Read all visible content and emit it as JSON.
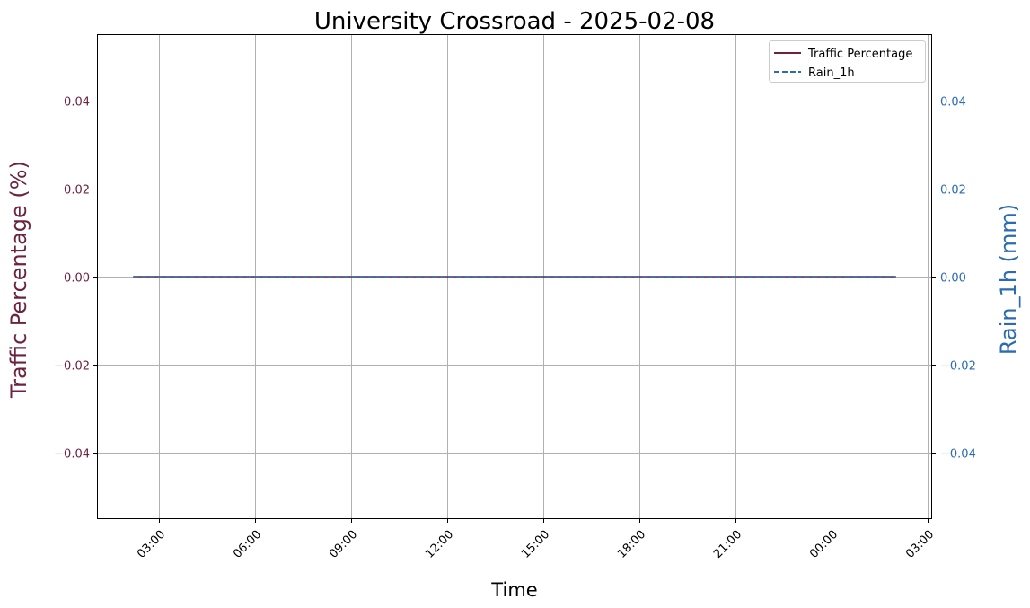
{
  "chart_data": {
    "type": "line",
    "title": "University Crossroad - 2025-02-08",
    "xlabel": "Time",
    "ylabel_left": "Traffic Percentage (%)",
    "ylabel_right": "Rain_1h (mm)",
    "x_tick_labels": [
      "03:00",
      "06:00",
      "09:00",
      "12:00",
      "15:00",
      "18:00",
      "21:00",
      "00:00",
      "03:00"
    ],
    "x_tick_hours": [
      3,
      6,
      9,
      12,
      15,
      18,
      21,
      24,
      27
    ],
    "xlim_hours": [
      1.1,
      27.1
    ],
    "y_left_ticks": [
      0.04,
      0.02,
      0.0,
      -0.02,
      -0.04
    ],
    "y_left_tick_labels": [
      "0.04",
      "0.02",
      "0.00",
      "−0.02",
      "−0.04"
    ],
    "y_right_ticks": [
      0.04,
      0.02,
      0.0,
      -0.02,
      -0.04
    ],
    "y_right_tick_labels": [
      "0.04",
      "0.02",
      "0.00",
      "−0.02",
      "−0.04"
    ],
    "ylim_left": [
      -0.055,
      0.055
    ],
    "ylim_right": [
      -0.055,
      0.055
    ],
    "grid": true,
    "legend_position": "top-right",
    "series": [
      {
        "name": "Traffic Percentage",
        "axis": "left",
        "style": "solid",
        "color": "#6b2340",
        "x_hours": [
          2.2,
          26.0
        ],
        "values": [
          0.0,
          0.0
        ]
      },
      {
        "name": "Rain_1h",
        "axis": "right",
        "style": "dashed",
        "color": "#2b6cb0",
        "x_hours": [
          2.2,
          26.0
        ],
        "values": [
          0.0,
          0.0
        ]
      }
    ],
    "colors": {
      "left_axis": "#6b2340",
      "right_axis": "#2b6cb0"
    }
  }
}
